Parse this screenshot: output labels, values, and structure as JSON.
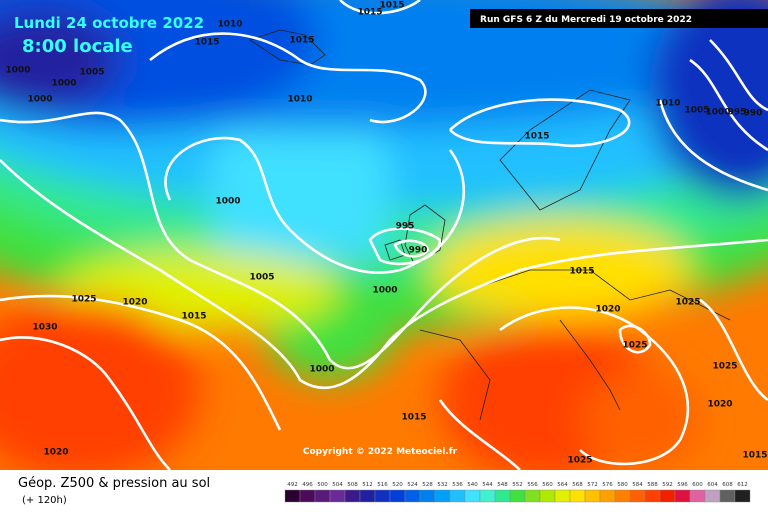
{
  "header": {
    "date": "Lundi 24 octobre 2022",
    "time": "8:00 locale",
    "run": "Run GFS 6 Z du Mercredi 19 octobre 2022"
  },
  "copyright": "Copyright © 2022 Meteociel.fr",
  "footer": {
    "title": "Géop. Z500 & pression au sol",
    "lead": "(+ 120h)"
  },
  "isobar_labels": [
    1015,
    1015,
    1010,
    1015,
    1015,
    1000,
    1000,
    1005,
    1000,
    1010,
    1010,
    1005,
    1000,
    995,
    990,
    1015,
    1000,
    995,
    990,
    1005,
    1000,
    1025,
    1020,
    1015,
    1015,
    1030,
    1020,
    1025,
    1025,
    1000,
    1020,
    1015,
    1025,
    1020,
    1015,
    1025
  ],
  "colorbar": {
    "ticks": [
      492,
      496,
      500,
      504,
      508,
      512,
      516,
      520,
      524,
      528,
      532,
      536,
      540,
      544,
      548,
      552,
      556,
      560,
      564,
      568,
      572,
      576,
      580,
      584,
      588,
      592,
      596,
      600,
      604,
      608,
      612
    ],
    "colors": [
      "#2a0030",
      "#4b0a5a",
      "#5a1a7a",
      "#6a2a9a",
      "#3a1a8a",
      "#2020a0",
      "#1030c0",
      "#0040d8",
      "#0060e8",
      "#0080f0",
      "#00a0f8",
      "#20c0ff",
      "#40e0ff",
      "#40f0d0",
      "#30e890",
      "#40e040",
      "#80e020",
      "#b0e800",
      "#e0f000",
      "#ffe000",
      "#ffc000",
      "#ffa000",
      "#ff8000",
      "#ff6000",
      "#ff4000",
      "#f02000",
      "#e01040",
      "#e060a0",
      "#c0a0c0",
      "#606060",
      "#202020"
    ]
  }
}
